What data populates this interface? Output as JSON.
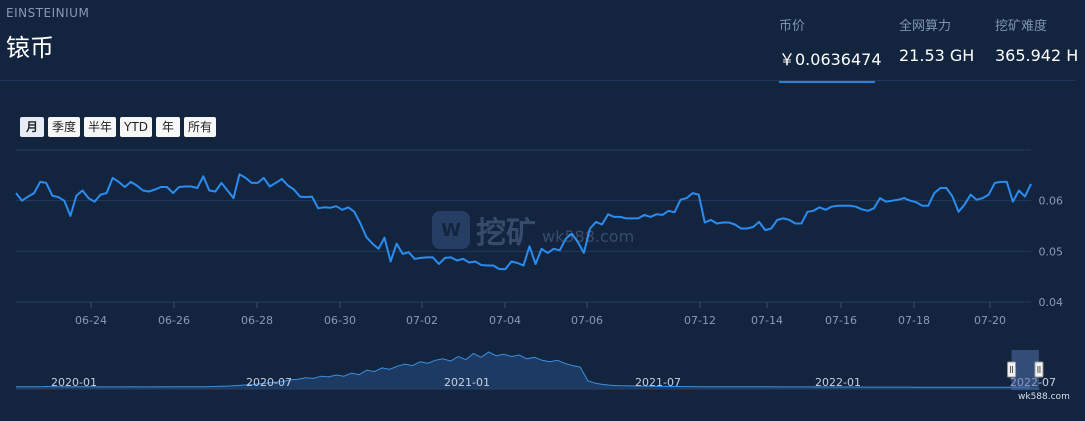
{
  "header": {
    "coin_code": "EINSTEINIUM",
    "coin_name": "锿币"
  },
  "stats": {
    "price_label": "币价",
    "price_value": "￥0.0636474",
    "hashrate_label": "全网算力",
    "hashrate_value": "21.53 GH",
    "difficulty_label": "挖矿难度",
    "difficulty_value": "365.942 H"
  },
  "range_buttons": [
    "月",
    "季度",
    "半年",
    "YTD",
    "年",
    "所有"
  ],
  "active_range": "月",
  "watermark": {
    "logo_text": "W",
    "text_cn": "挖矿",
    "text_url": "wk588.com"
  },
  "credit": "wk588.com",
  "colors": {
    "background": "#13243f",
    "line": "#2b8cf0",
    "grid": "#253a5c",
    "accent": "#2b83d9"
  },
  "chart_data": {
    "type": "line",
    "title": "",
    "xlabel": "",
    "ylabel": "",
    "ylim": [
      0.04,
      0.07
    ],
    "y_ticks": [
      0.04,
      0.05,
      0.06
    ],
    "y_tick_labels": [
      "0.04",
      "0.05",
      "0.06"
    ],
    "x_tick_labels": [
      "06-24",
      "06-26",
      "06-28",
      "06-30",
      "07-02",
      "07-04",
      "07-06",
      "07-12",
      "07-14",
      "07-16",
      "07-18",
      "07-20"
    ],
    "grid": true,
    "series": [
      {
        "values": [
          0.0615,
          0.06,
          0.0608,
          0.0615,
          0.0637,
          0.0635,
          0.061,
          0.0607,
          0.06,
          0.057,
          0.061,
          0.062,
          0.0605,
          0.0598,
          0.0612,
          0.0615,
          0.0645,
          0.0637,
          0.0627,
          0.0637,
          0.063,
          0.062,
          0.0618,
          0.0622,
          0.0627,
          0.0627,
          0.0615,
          0.0627,
          0.0628,
          0.0628,
          0.0625,
          0.0648,
          0.062,
          0.0618,
          0.0635,
          0.062,
          0.0605,
          0.0652,
          0.0645,
          0.0635,
          0.0635,
          0.0645,
          0.0628,
          0.0635,
          0.0643,
          0.063,
          0.0622,
          0.0608,
          0.0607,
          0.0608,
          0.0585,
          0.0587,
          0.0586,
          0.0589,
          0.0582,
          0.0587,
          0.0578,
          0.0555,
          0.0528,
          0.0515,
          0.0505,
          0.0527,
          0.048,
          0.0515,
          0.0495,
          0.0498,
          0.0485,
          0.0487,
          0.0488,
          0.0488,
          0.0475,
          0.0487,
          0.0488,
          0.0482,
          0.0485,
          0.0478,
          0.048,
          0.0473,
          0.0472,
          0.0472,
          0.0465,
          0.0465,
          0.048,
          0.0477,
          0.0472,
          0.051,
          0.0475,
          0.0505,
          0.0497,
          0.0505,
          0.0502,
          0.0525,
          0.0535,
          0.0518,
          0.0497,
          0.0545,
          0.0558,
          0.0553,
          0.0573,
          0.0568,
          0.0568,
          0.0565,
          0.0565,
          0.0565,
          0.0572,
          0.0568,
          0.0573,
          0.0572,
          0.058,
          0.0577,
          0.0602,
          0.0605,
          0.0615,
          0.0612,
          0.0557,
          0.0562,
          0.0555,
          0.0557,
          0.0557,
          0.0553,
          0.0545,
          0.0545,
          0.0548,
          0.0558,
          0.0542,
          0.0545,
          0.0562,
          0.0565,
          0.0562,
          0.0555,
          0.0555,
          0.0578,
          0.058,
          0.0587,
          0.0582,
          0.0588,
          0.059,
          0.059,
          0.059,
          0.0588,
          0.0583,
          0.058,
          0.0585,
          0.0605,
          0.0598,
          0.06,
          0.0602,
          0.0605,
          0.06,
          0.0597,
          0.059,
          0.059,
          0.0615,
          0.0625,
          0.0625,
          0.0608,
          0.0578,
          0.0592,
          0.0612,
          0.0602,
          0.0605,
          0.0612,
          0.0635,
          0.0637,
          0.0637,
          0.0598,
          0.062,
          0.0608,
          0.0633
        ]
      }
    ]
  },
  "navigator": {
    "x_tick_labels": [
      "2020-01",
      "2020-07",
      "2021-01",
      "2021-07",
      "2022-01",
      "2022-07"
    ],
    "values": [
      0.06,
      0.058,
      0.057,
      0.058,
      0.065,
      0.06,
      0.058,
      0.056,
      0.057,
      0.058,
      0.057,
      0.056,
      0.055,
      0.056,
      0.056,
      0.057,
      0.056,
      0.055,
      0.056,
      0.057,
      0.056,
      0.057,
      0.058,
      0.059,
      0.06,
      0.062,
      0.066,
      0.072,
      0.08,
      0.092,
      0.105,
      0.12,
      0.14,
      0.16,
      0.18,
      0.2,
      0.24,
      0.26,
      0.3,
      0.28,
      0.34,
      0.32,
      0.37,
      0.34,
      0.42,
      0.38,
      0.5,
      0.46,
      0.56,
      0.52,
      0.6,
      0.66,
      0.62,
      0.72,
      0.68,
      0.76,
      0.8,
      0.74,
      0.86,
      0.78,
      0.94,
      0.84,
      0.98,
      0.88,
      0.92,
      0.86,
      0.9,
      0.8,
      0.84,
      0.76,
      0.72,
      0.76,
      0.68,
      0.62,
      0.58,
      0.22,
      0.15,
      0.12,
      0.1,
      0.09,
      0.085,
      0.08,
      0.078,
      0.075,
      0.07,
      0.068,
      0.066,
      0.065,
      0.064,
      0.063,
      0.062,
      0.062,
      0.061,
      0.06,
      0.06,
      0.059,
      0.058,
      0.058,
      0.057,
      0.057,
      0.056,
      0.056,
      0.055,
      0.055,
      0.055,
      0.054,
      0.054,
      0.053,
      0.053,
      0.052,
      0.052,
      0.051,
      0.051,
      0.05,
      0.05,
      0.05,
      0.049,
      0.049,
      0.048,
      0.048,
      0.048,
      0.048,
      0.048,
      0.048,
      0.048,
      0.048,
      0.048,
      0.047,
      0.047,
      0.047,
      0.048,
      0.048,
      0.049,
      0.049
    ],
    "selection_start_fraction": 0.968,
    "selection_end_fraction": 0.995
  }
}
